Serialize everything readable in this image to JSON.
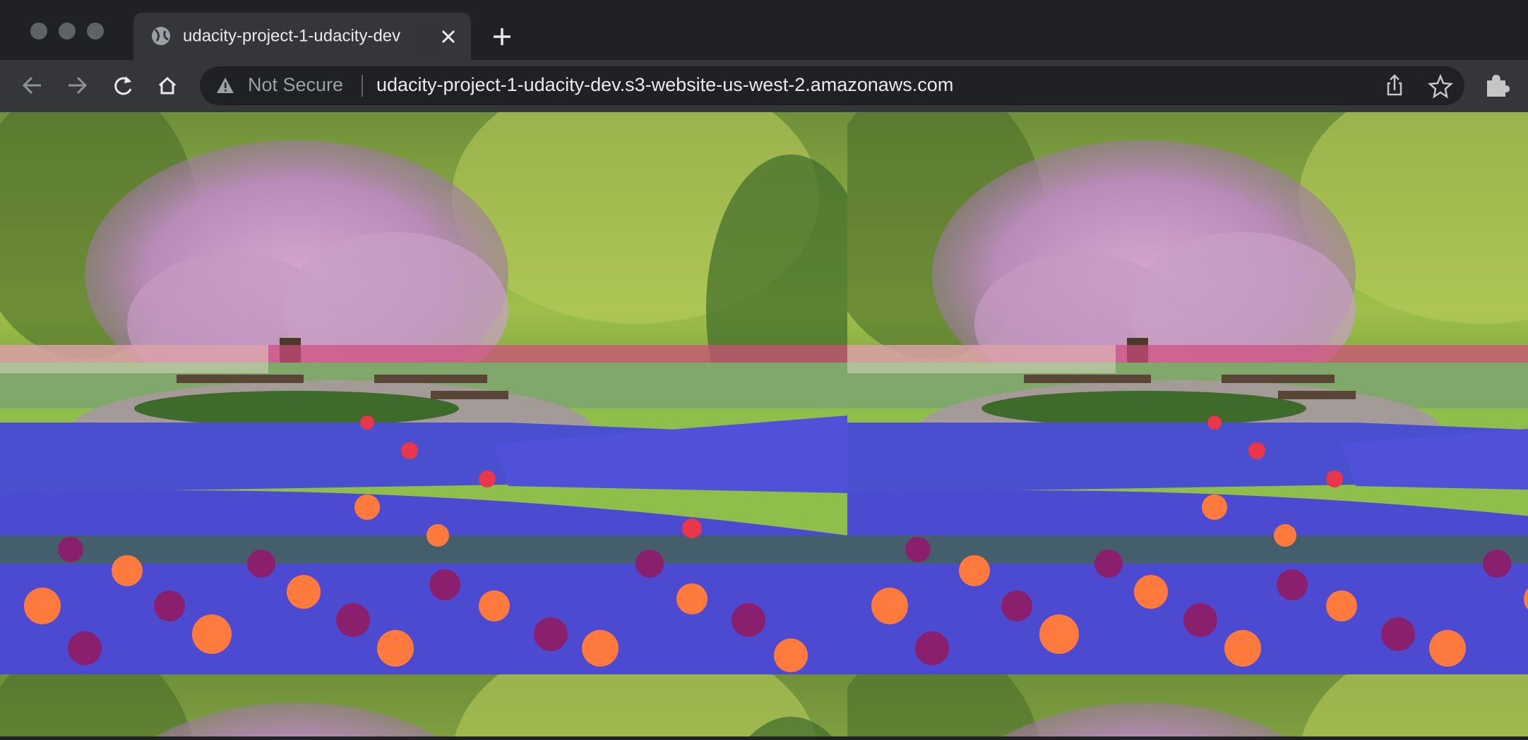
{
  "browser": {
    "tab": {
      "title": "udacity-project-1-udacity-dev"
    },
    "address_bar": {
      "security": "Not Secure",
      "url": "udacity-project-1-udacity-dev.s3-website-us-west-2.amazonaws.com"
    }
  }
}
